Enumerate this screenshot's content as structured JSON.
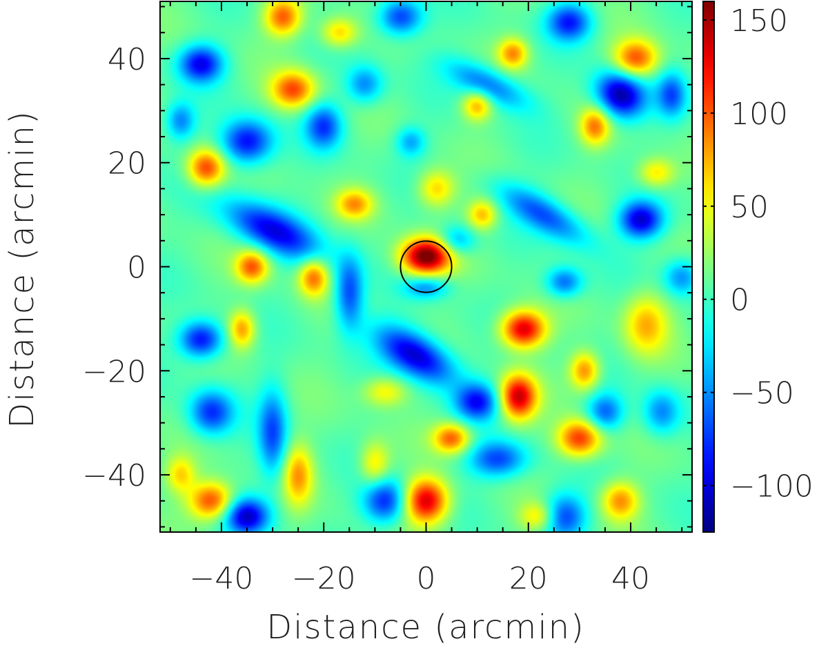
{
  "chart_data": {
    "type": "heatmap",
    "title": "",
    "xlabel": "Distance (arcmin)",
    "ylabel": "Distance (arcmin)",
    "xlim": [
      -52,
      52
    ],
    "ylim": [
      -51,
      51
    ],
    "x_ticks": [
      {
        "value": -40,
        "label": "−40"
      },
      {
        "value": -20,
        "label": "−20"
      },
      {
        "value": 0,
        "label": "0"
      },
      {
        "value": 20,
        "label": "20"
      },
      {
        "value": 40,
        "label": "40"
      }
    ],
    "y_ticks": [
      {
        "value": 40,
        "label": "40"
      },
      {
        "value": 20,
        "label": "20"
      },
      {
        "value": 0,
        "label": "0"
      },
      {
        "value": -20,
        "label": "−20"
      },
      {
        "value": -40,
        "label": "−40"
      }
    ],
    "colorbar": {
      "range": [
        -125,
        160
      ],
      "colormap": "jet",
      "ticks": [
        {
          "value": 150,
          "label": "150"
        },
        {
          "value": 100,
          "label": "100"
        },
        {
          "value": 50,
          "label": "50"
        },
        {
          "value": 0,
          "label": "0"
        },
        {
          "value": -50,
          "label": "−50"
        },
        {
          "value": -100,
          "label": "−100"
        }
      ]
    },
    "circle_marker": {
      "x": 0,
      "y": 0,
      "radius": 5
    },
    "features": [
      {
        "x": 0,
        "y": 2,
        "value": 160,
        "sx": 3.4,
        "sy": 2.4
      },
      {
        "x": 0,
        "y": -4,
        "value": -55,
        "sx": 3,
        "sy": 1.5
      },
      {
        "x": 38,
        "y": 33,
        "value": -125,
        "sx": 3.5,
        "sy": 3,
        "angle": -30
      },
      {
        "x": 41,
        "y": 40,
        "value": 95,
        "sx": 3,
        "sy": 2.5
      },
      {
        "x": 42,
        "y": 9,
        "value": -110,
        "sx": 3,
        "sy": 2.5
      },
      {
        "x": -35,
        "y": 24,
        "value": -100,
        "sx": 3.5,
        "sy": 3
      },
      {
        "x": -44,
        "y": 39,
        "value": -100,
        "sx": 3,
        "sy": 2.5
      },
      {
        "x": -43,
        "y": 19,
        "value": 100,
        "sx": 2.5,
        "sy": 2.5
      },
      {
        "x": -28,
        "y": 48,
        "value": 90,
        "sx": 2.5,
        "sy": 2.5
      },
      {
        "x": -26,
        "y": 34,
        "value": 95,
        "sx": 3,
        "sy": 2.5
      },
      {
        "x": -30,
        "y": 7,
        "value": -100,
        "sx": 7,
        "sy": 2.8,
        "angle": -25
      },
      {
        "x": -34,
        "y": 0,
        "value": 90,
        "sx": 2.2,
        "sy": 2.2
      },
      {
        "x": -22,
        "y": -2,
        "value": 85,
        "sx": 2,
        "sy": 2.5
      },
      {
        "x": -44,
        "y": -14,
        "value": -100,
        "sx": 3,
        "sy": 2.5
      },
      {
        "x": -35,
        "y": -48,
        "value": -110,
        "sx": 3,
        "sy": 2.5
      },
      {
        "x": -42,
        "y": -45,
        "value": 100,
        "sx": 3,
        "sy": 2.5
      },
      {
        "x": 0,
        "y": -45,
        "value": 130,
        "sx": 3,
        "sy": 3
      },
      {
        "x": -2,
        "y": -17,
        "value": -115,
        "sx": 6,
        "sy": 2.8,
        "angle": -30
      },
      {
        "x": 19,
        "y": -12,
        "value": 130,
        "sx": 3,
        "sy": 2.5
      },
      {
        "x": 18,
        "y": -25,
        "value": 130,
        "sx": 2.5,
        "sy": 3
      },
      {
        "x": 30,
        "y": -33,
        "value": 105,
        "sx": 3,
        "sy": 2.5
      },
      {
        "x": 31,
        "y": -20,
        "value": 80,
        "sx": 2,
        "sy": 2.5
      },
      {
        "x": 43,
        "y": -11,
        "value": 65,
        "sx": 3,
        "sy": 4
      },
      {
        "x": 10,
        "y": -26,
        "value": -90,
        "sx": 3,
        "sy": 2.5
      },
      {
        "x": 14,
        "y": -37,
        "value": -80,
        "sx": 4,
        "sy": 2.5
      },
      {
        "x": 12,
        "y": 35,
        "value": -70,
        "sx": 6,
        "sy": 2.2,
        "angle": -25
      },
      {
        "x": 23,
        "y": 10,
        "value": -75,
        "sx": 7,
        "sy": 2.3,
        "angle": -30
      },
      {
        "x": 33,
        "y": 27,
        "value": 80,
        "sx": 2,
        "sy": 2.5
      },
      {
        "x": 5,
        "y": -33,
        "value": 90,
        "sx": 2.5,
        "sy": 2
      },
      {
        "x": -14,
        "y": 12,
        "value": 70,
        "sx": 2.5,
        "sy": 2
      },
      {
        "x": 11,
        "y": 10,
        "value": 65,
        "sx": 2,
        "sy": 2
      },
      {
        "x": 17,
        "y": 41,
        "value": 75,
        "sx": 2,
        "sy": 2
      },
      {
        "x": -17,
        "y": 45,
        "value": 60,
        "sx": 2.5,
        "sy": 2
      },
      {
        "x": 10,
        "y": 31,
        "value": 70,
        "sx": 2,
        "sy": 2
      },
      {
        "x": -15,
        "y": -5,
        "value": -80,
        "sx": 2,
        "sy": 5
      },
      {
        "x": -30,
        "y": -32,
        "value": -75,
        "sx": 2,
        "sy": 6
      },
      {
        "x": -42,
        "y": -28,
        "value": -85,
        "sx": 3,
        "sy": 3
      },
      {
        "x": 27,
        "y": -48,
        "value": -80,
        "sx": 3,
        "sy": 3
      },
      {
        "x": 38,
        "y": -45,
        "value": 75,
        "sx": 2.5,
        "sy": 2.5
      },
      {
        "x": -8,
        "y": -45,
        "value": -90,
        "sx": 3,
        "sy": 3
      },
      {
        "x": -20,
        "y": 27,
        "value": -80,
        "sx": 2.5,
        "sy": 3
      },
      {
        "x": 28,
        "y": 47,
        "value": -90,
        "sx": 3,
        "sy": 2.5
      },
      {
        "x": -5,
        "y": 48,
        "value": -85,
        "sx": 3,
        "sy": 2.5
      },
      {
        "x": 48,
        "y": 33,
        "value": -70,
        "sx": 2,
        "sy": 3
      },
      {
        "x": -48,
        "y": 28,
        "value": -60,
        "sx": 2,
        "sy": 2.5
      },
      {
        "x": 2,
        "y": 15,
        "value": 60,
        "sx": 2.5,
        "sy": 2.5
      },
      {
        "x": -8,
        "y": -24,
        "value": 50,
        "sx": 3,
        "sy": 2
      },
      {
        "x": 22,
        "y": -48,
        "value": 55,
        "sx": 2.5,
        "sy": 2
      },
      {
        "x": -10,
        "y": -38,
        "value": 55,
        "sx": 2,
        "sy": 3
      },
      {
        "x": -25,
        "y": -40,
        "value": 70,
        "sx": 2,
        "sy": 4
      },
      {
        "x": -36,
        "y": -12,
        "value": 75,
        "sx": 1.8,
        "sy": 2.5
      },
      {
        "x": 45,
        "y": 18,
        "value": 55,
        "sx": 2.5,
        "sy": 2
      },
      {
        "x": 27,
        "y": -3,
        "value": -70,
        "sx": 2.5,
        "sy": 2
      },
      {
        "x": 50,
        "y": -2,
        "value": -60,
        "sx": 2.5,
        "sy": 2.5
      },
      {
        "x": 35,
        "y": -28,
        "value": -70,
        "sx": 2.5,
        "sy": 2.5
      },
      {
        "x": -48,
        "y": -40,
        "value": 55,
        "sx": 2,
        "sy": 2.5
      },
      {
        "x": 6,
        "y": 5,
        "value": -55,
        "sx": 2.5,
        "sy": 2
      },
      {
        "x": -12,
        "y": 35,
        "value": -60,
        "sx": 2.5,
        "sy": 2.5
      },
      {
        "x": 46,
        "y": -28,
        "value": -60,
        "sx": 2.5,
        "sy": 3
      },
      {
        "x": -3,
        "y": 24,
        "value": -50,
        "sx": 2,
        "sy": 2
      }
    ]
  }
}
